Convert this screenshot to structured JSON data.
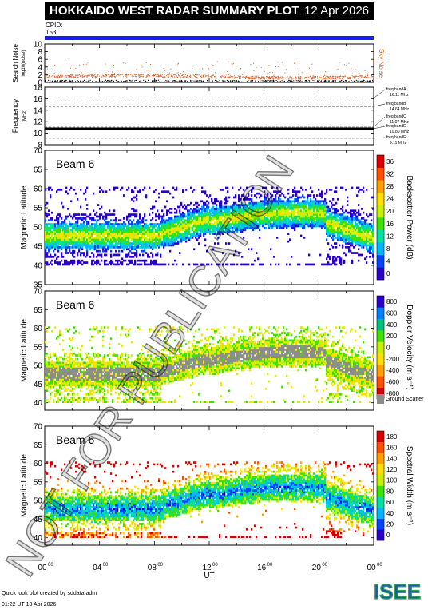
{
  "header": {
    "title": "HOKKAIDO WEST RADAR SUMMARY PLOT",
    "date": "12 Apr 2026",
    "cpid_label": "CPID:",
    "cpid_value": "153"
  },
  "watermark": "NOT FOR PUBLICATION",
  "footer": {
    "credit": "Quick look plot created by sddata.adm",
    "timestamp": "01:22 UT 13 Apr 2026"
  },
  "logo": {
    "text": "ISEE",
    "colors": [
      "#1e5aa8",
      "#2fa84f"
    ]
  },
  "chart_data": [
    {
      "type": "line",
      "name": "noise-panel",
      "ylabel": "Search Noise",
      "yunit": "log10(noise)",
      "right_label": "Sky Noise",
      "right_label_color": "#e05a1a",
      "ylim": [
        0,
        10
      ],
      "yticks": [
        "0",
        "2",
        "4",
        "6",
        "8",
        "10"
      ]
    },
    {
      "type": "line",
      "name": "frequency-panel",
      "ylabel": "Frequency",
      "yunit": "(MHz)",
      "ylim": [
        8,
        18
      ],
      "yticks": [
        "8",
        "10",
        "12",
        "14",
        "16",
        "18"
      ],
      "bands": [
        {
          "label": "freq bandA",
          "value": "16.11 MHz",
          "mhz": 16.11
        },
        {
          "label": "freq bandB",
          "value": "14.64 MHz",
          "mhz": 14.64
        },
        {
          "label": "freq bandC",
          "value": "11.07 MHz",
          "mhz": 11.07
        },
        {
          "label": "freq bandD",
          "value": "10.80 MHz",
          "mhz": 10.8
        },
        {
          "label": "freq bandE",
          "value": "9.11 MHz",
          "mhz": 9.11
        }
      ],
      "operating_mhz": 10.8
    },
    {
      "type": "heatmap",
      "name": "power-panel",
      "beam": "Beam  6",
      "ylabel": "Magnetic Latitude",
      "ylim": [
        35,
        70
      ],
      "yticks": [
        "35",
        "40",
        "45",
        "50",
        "55",
        "60",
        "65",
        "70"
      ],
      "colorbar_label": "Backscatter Power (dB)",
      "colorbar_ticks": [
        "0",
        "4",
        "8",
        "12",
        "16",
        "20",
        "24",
        "28",
        "32",
        "36"
      ],
      "colormap": [
        "#2a00c8",
        "#0047ff",
        "#00b8ff",
        "#00e0a0",
        "#40e000",
        "#c8f000",
        "#ffe000",
        "#ffa000",
        "#ff5000",
        "#d80000"
      ]
    },
    {
      "type": "heatmap",
      "name": "velocity-panel",
      "beam": "Beam  6",
      "ylabel": "Magnetic Latitude",
      "ylim": [
        38,
        70
      ],
      "yticks": [
        "40",
        "45",
        "50",
        "55",
        "60",
        "65",
        "70"
      ],
      "colorbar_label": "Doppler Velocity (m s⁻¹)",
      "colorbar_ticks": [
        "-800",
        "-600",
        "-400",
        "-200",
        "0",
        "200",
        "400",
        "600",
        "800"
      ],
      "colormap": [
        "#d80000",
        "#ff5000",
        "#ffa000",
        "#ffe000",
        "#c8f000",
        "#40e000",
        "#00c080",
        "#0080ff",
        "#2a00c8"
      ],
      "ground_scatter_label": "Ground Scatter",
      "ground_scatter_color": "#8c8c8c"
    },
    {
      "type": "heatmap",
      "name": "width-panel",
      "beam": "Beam  6",
      "ylabel": "Magnetic Latitude",
      "ylim": [
        38,
        70
      ],
      "yticks": [
        "40",
        "45",
        "50",
        "55",
        "60",
        "65",
        "70"
      ],
      "colorbar_label": "Spectral Width (m s⁻¹)",
      "colorbar_ticks": [
        "0",
        "20",
        "40",
        "60",
        "80",
        "100",
        "120",
        "140",
        "160",
        "180"
      ],
      "colormap": [
        "#2a00c8",
        "#0047ff",
        "#00b8ff",
        "#00e0a0",
        "#40e000",
        "#c8f000",
        "#ffe000",
        "#ffa000",
        "#ff5000",
        "#d80000"
      ],
      "x_tick_labels": [
        "00",
        "04",
        "08",
        "12",
        "16",
        "20",
        "00"
      ],
      "x_tick_sup": "00",
      "xlabel": "UT"
    }
  ]
}
